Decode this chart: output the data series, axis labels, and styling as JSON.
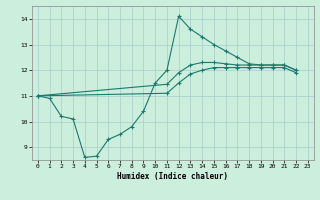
{
  "xlabel": "Humidex (Indice chaleur)",
  "bg_color": "#cceedd",
  "grid_color": "#aacccc",
  "line_color": "#1a7a6e",
  "ylim": [
    8.5,
    14.5
  ],
  "xlim": [
    -0.5,
    23.5
  ],
  "yticks": [
    9,
    10,
    11,
    12,
    13,
    14
  ],
  "xticks": [
    0,
    1,
    2,
    3,
    4,
    5,
    6,
    7,
    8,
    9,
    10,
    11,
    12,
    13,
    14,
    15,
    16,
    17,
    18,
    19,
    20,
    21,
    22,
    23
  ],
  "line_spiky_x": [
    0,
    1,
    2,
    3,
    4,
    5,
    6,
    7,
    8,
    9,
    10,
    11,
    12,
    13,
    14,
    15,
    16,
    17,
    18,
    19,
    20,
    21,
    22
  ],
  "line_spiky_y": [
    11.0,
    10.9,
    10.2,
    10.1,
    8.6,
    8.65,
    9.3,
    9.5,
    9.8,
    10.4,
    11.5,
    12.0,
    14.1,
    13.6,
    13.3,
    13.0,
    12.75,
    12.5,
    12.25,
    12.2,
    12.2,
    12.2,
    12.0
  ],
  "line_upper_x": [
    0,
    11,
    12,
    13,
    14,
    15,
    16,
    17,
    18,
    19,
    20,
    21,
    22
  ],
  "line_upper_y": [
    11.0,
    11.45,
    11.9,
    12.2,
    12.3,
    12.3,
    12.25,
    12.2,
    12.2,
    12.2,
    12.2,
    12.2,
    12.0
  ],
  "line_lower_x": [
    0,
    11,
    12,
    13,
    14,
    15,
    16,
    17,
    18,
    19,
    20,
    21,
    22
  ],
  "line_lower_y": [
    11.0,
    11.1,
    11.5,
    11.85,
    12.0,
    12.1,
    12.1,
    12.1,
    12.1,
    12.1,
    12.1,
    12.1,
    11.9
  ]
}
